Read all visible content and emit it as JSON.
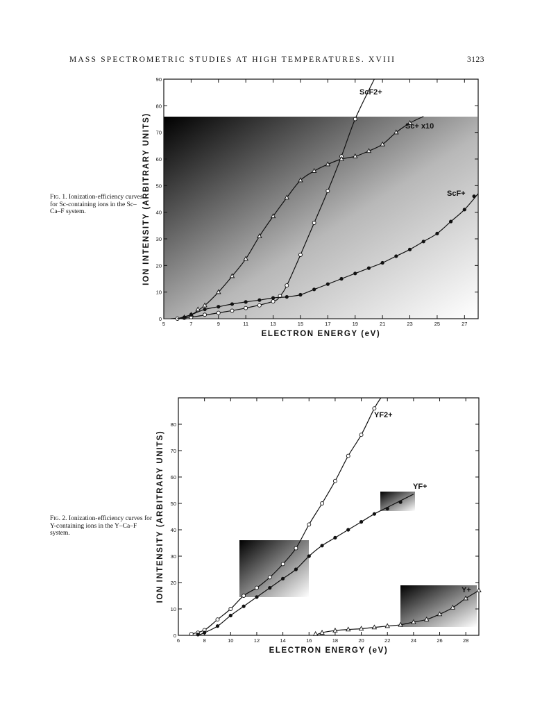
{
  "header": {
    "running_title": "MASS SPECTROMETRIC STUDIES AT HIGH TEMPERATURES. XVIII",
    "page_number": "3123"
  },
  "figures": [
    {
      "caption_label": "Fig. 1.",
      "caption_text": "Ionization-efficiency curves for Sc-containing ions in the Sc–Ca–F system."
    },
    {
      "caption_label": "Fig. 2.",
      "caption_text": "Ionization-efficiency curves for Y-containing ions in the Y–Ca–F system."
    }
  ],
  "chart_data": [
    {
      "type": "line",
      "xlabel": "ELECTRON ENERGY (eV)",
      "ylabel": "ION INTENSITY (ARBITRARY UNITS)",
      "xlim": [
        5,
        28
      ],
      "ylim": [
        0,
        90
      ],
      "xticks": [
        5,
        7,
        9,
        11,
        13,
        15,
        17,
        19,
        21,
        23,
        25,
        27
      ],
      "yticks": [
        0,
        10,
        20,
        30,
        40,
        50,
        60,
        70,
        80,
        90
      ],
      "grid": false,
      "series": [
        {
          "name": "ScF2+",
          "marker": "circle-open",
          "x": [
            6,
            6.5,
            7,
            8,
            9,
            10,
            11,
            12,
            13,
            13.5,
            14,
            15,
            16,
            17,
            18,
            19
          ],
          "y": [
            0,
            0.3,
            0.6,
            1.5,
            2.2,
            3.0,
            4.0,
            5.0,
            6.5,
            8.5,
            12.5,
            24,
            36,
            48,
            61,
            75
          ],
          "curve_x": [
            5.5,
            7,
            9,
            11,
            13,
            13.5,
            14,
            15,
            16,
            17,
            18,
            19,
            20.4
          ],
          "curve_y": [
            0,
            0.6,
            2.2,
            4.0,
            6.5,
            8.5,
            12.5,
            24,
            36,
            48,
            61,
            75,
            90
          ]
        },
        {
          "name": "Sc+ x10",
          "marker": "triangle-open",
          "x": [
            6.5,
            7,
            7.5,
            8,
            9,
            10,
            11,
            12,
            13,
            14,
            15,
            16,
            17,
            18,
            19,
            20,
            21,
            22,
            23
          ],
          "y": [
            0.5,
            1.5,
            3.5,
            5,
            10,
            16,
            22.5,
            31,
            38.5,
            45.5,
            52,
            55.5,
            58,
            60,
            61,
            63,
            65.5,
            70,
            73.5
          ],
          "curve_x": [
            6,
            7,
            8,
            9,
            10,
            11,
            12,
            13,
            14,
            15,
            16,
            17,
            18,
            19,
            20,
            21,
            22,
            23,
            24
          ],
          "curve_y": [
            0,
            1.5,
            5,
            10,
            16,
            22.5,
            31,
            38.5,
            45.5,
            52,
            55.5,
            58,
            60,
            61,
            63,
            65.5,
            70,
            73.5,
            76
          ]
        },
        {
          "name": "ScF+",
          "marker": "circle-filled",
          "x": [
            6.5,
            7,
            8,
            9,
            10,
            11,
            12,
            13,
            14,
            15,
            16,
            17,
            18,
            19,
            20,
            21,
            22,
            23,
            24,
            25,
            26,
            27,
            27.7
          ],
          "y": [
            0.5,
            1.5,
            3.5,
            4.5,
            5.5,
            6.3,
            7.0,
            7.8,
            8.2,
            9.0,
            11.0,
            13.0,
            15.0,
            17.0,
            19.0,
            21.0,
            23.5,
            26.0,
            29.0,
            32.0,
            36.5,
            41.0,
            46.0
          ],
          "curve_x": [
            6,
            7,
            8,
            9,
            10,
            11,
            12,
            13,
            14,
            15,
            16,
            17,
            18,
            19,
            20,
            21,
            22,
            23,
            24,
            25,
            26,
            27,
            28
          ],
          "curve_y": [
            0,
            1.5,
            3.5,
            4.5,
            5.5,
            6.3,
            7.0,
            7.8,
            8.2,
            9.0,
            11.0,
            13.0,
            15.0,
            17.0,
            19.0,
            21.0,
            23.5,
            26.0,
            29.0,
            32.0,
            36.5,
            41.0,
            47.0
          ]
        }
      ]
    },
    {
      "type": "line",
      "xlabel": "ELECTRON ENERGY (eV)",
      "ylabel": "ION INTENSITY (ARBITRARY UNITS)",
      "xlim": [
        6,
        29
      ],
      "ylim": [
        0,
        90
      ],
      "xticks": [
        6,
        8,
        10,
        12,
        14,
        16,
        18,
        20,
        22,
        24,
        26,
        28
      ],
      "yticks": [
        0,
        10,
        20,
        30,
        40,
        50,
        60,
        70,
        80
      ],
      "grid": false,
      "series": [
        {
          "name": "YF2+",
          "marker": "circle-open",
          "x": [
            7,
            7.5,
            8,
            9,
            10,
            11,
            12,
            13,
            14,
            15,
            16,
            17,
            18,
            19,
            20,
            21
          ],
          "y": [
            0.5,
            1.0,
            2.0,
            6.0,
            10.0,
            15.0,
            18.0,
            22.0,
            27.0,
            33.0,
            42.0,
            50.0,
            58.5,
            68.0,
            76.0,
            86.0
          ],
          "curve_x": [
            7,
            8,
            9,
            10,
            11,
            12,
            13,
            14,
            15,
            16,
            17,
            18,
            19,
            20,
            21,
            21.5
          ],
          "curve_y": [
            0.5,
            2.0,
            6.0,
            10.0,
            15.0,
            18.0,
            22.0,
            27.0,
            33.0,
            42.0,
            50.0,
            58.5,
            68.0,
            76.0,
            86.0,
            90.0
          ]
        },
        {
          "name": "YF+",
          "marker": "circle-filled",
          "x": [
            7.5,
            8,
            9,
            10,
            11,
            12,
            13,
            14,
            15,
            16,
            17,
            18,
            19,
            20,
            21,
            22,
            23
          ],
          "y": [
            0.3,
            1.0,
            3.5,
            7.5,
            11.0,
            14.5,
            18.0,
            21.5,
            25.0,
            30.0,
            34.0,
            37.0,
            40.0,
            43.0,
            46.0,
            48.0,
            50.5
          ],
          "curve_x": [
            7.5,
            8,
            9,
            10,
            11,
            12,
            13,
            14,
            15,
            16,
            17,
            18,
            19,
            20,
            21,
            22,
            23,
            24
          ],
          "curve_y": [
            0,
            1.0,
            3.5,
            7.5,
            11.0,
            14.5,
            18.0,
            21.5,
            25.0,
            30.0,
            34.0,
            37.0,
            40.0,
            43.0,
            46.0,
            48.5,
            51.0,
            53.5
          ]
        },
        {
          "name": "Y+",
          "marker": "triangle-open",
          "x": [
            16.5,
            17,
            18,
            19,
            20,
            21,
            22,
            23,
            24,
            25,
            26,
            27,
            28,
            29
          ],
          "y": [
            0.5,
            1.0,
            1.8,
            2.2,
            2.5,
            3.0,
            3.5,
            4.0,
            5.0,
            6.0,
            8.0,
            10.5,
            14.0,
            17.0
          ],
          "curve_x": [
            16.5,
            17,
            18,
            19,
            20,
            21,
            22,
            23,
            24,
            25,
            26,
            27,
            28,
            29
          ],
          "curve_y": [
            0,
            1.0,
            1.8,
            2.2,
            2.5,
            3.0,
            3.5,
            4.0,
            5.0,
            6.0,
            8.0,
            10.5,
            14.0,
            17.0
          ]
        }
      ]
    }
  ]
}
